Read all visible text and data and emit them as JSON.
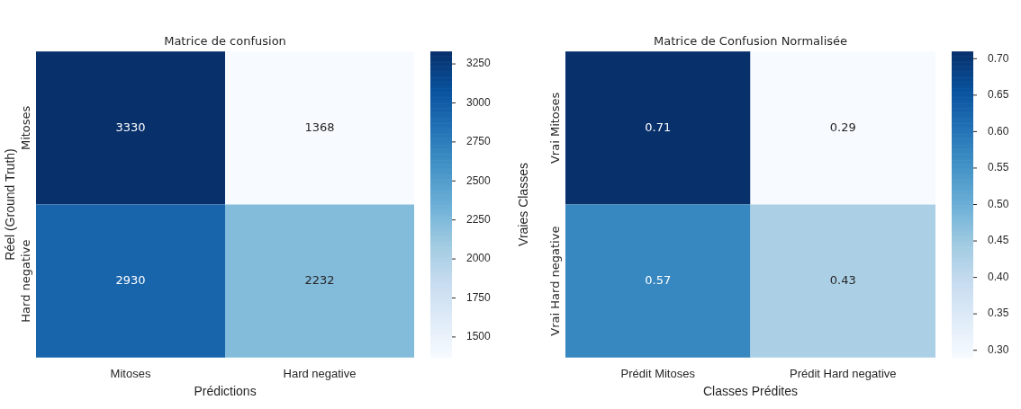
{
  "chart_data": [
    {
      "type": "heatmap",
      "title": "Matrice de confusion",
      "xlabel": "Prédictions",
      "ylabel": "Réel (Ground Truth)",
      "categories": [
        "Mitoses",
        "Hard negative"
      ],
      "y_categories": [
        "Mitoses",
        "Hard negative"
      ],
      "cells": [
        [
          3330,
          1368
        ],
        [
          2930,
          2232
        ]
      ],
      "data_labels": true,
      "clim": [
        1368,
        3330
      ],
      "cticks": [
        1500,
        1750,
        2000,
        2250,
        2500,
        2750,
        3000,
        3250
      ]
    },
    {
      "type": "heatmap",
      "title": "Matrice de Confusion Normalisée",
      "xlabel": "Classes Prédites",
      "ylabel": "Vraies Classes",
      "categories": [
        "Prédit Mitoses",
        "Prédit Hard negative"
      ],
      "y_categories": [
        "Vrai Mitoses",
        "Vrai Hard negative"
      ],
      "cells": [
        [
          0.71,
          0.29
        ],
        [
          0.57,
          0.43
        ]
      ],
      "data_labels": true,
      "clim": [
        0.29,
        0.71
      ],
      "cticks": [
        {
          "value": 0.3,
          "label": "0.30"
        },
        0.35,
        {
          "value": 0.4,
          "label": "0.40"
        },
        0.45,
        {
          "value": 0.5,
          "label": "0.50"
        },
        0.55,
        {
          "value": 0.6,
          "label": "0.60"
        },
        0.65,
        {
          "value": 0.7,
          "label": "0.70"
        }
      ]
    }
  ]
}
